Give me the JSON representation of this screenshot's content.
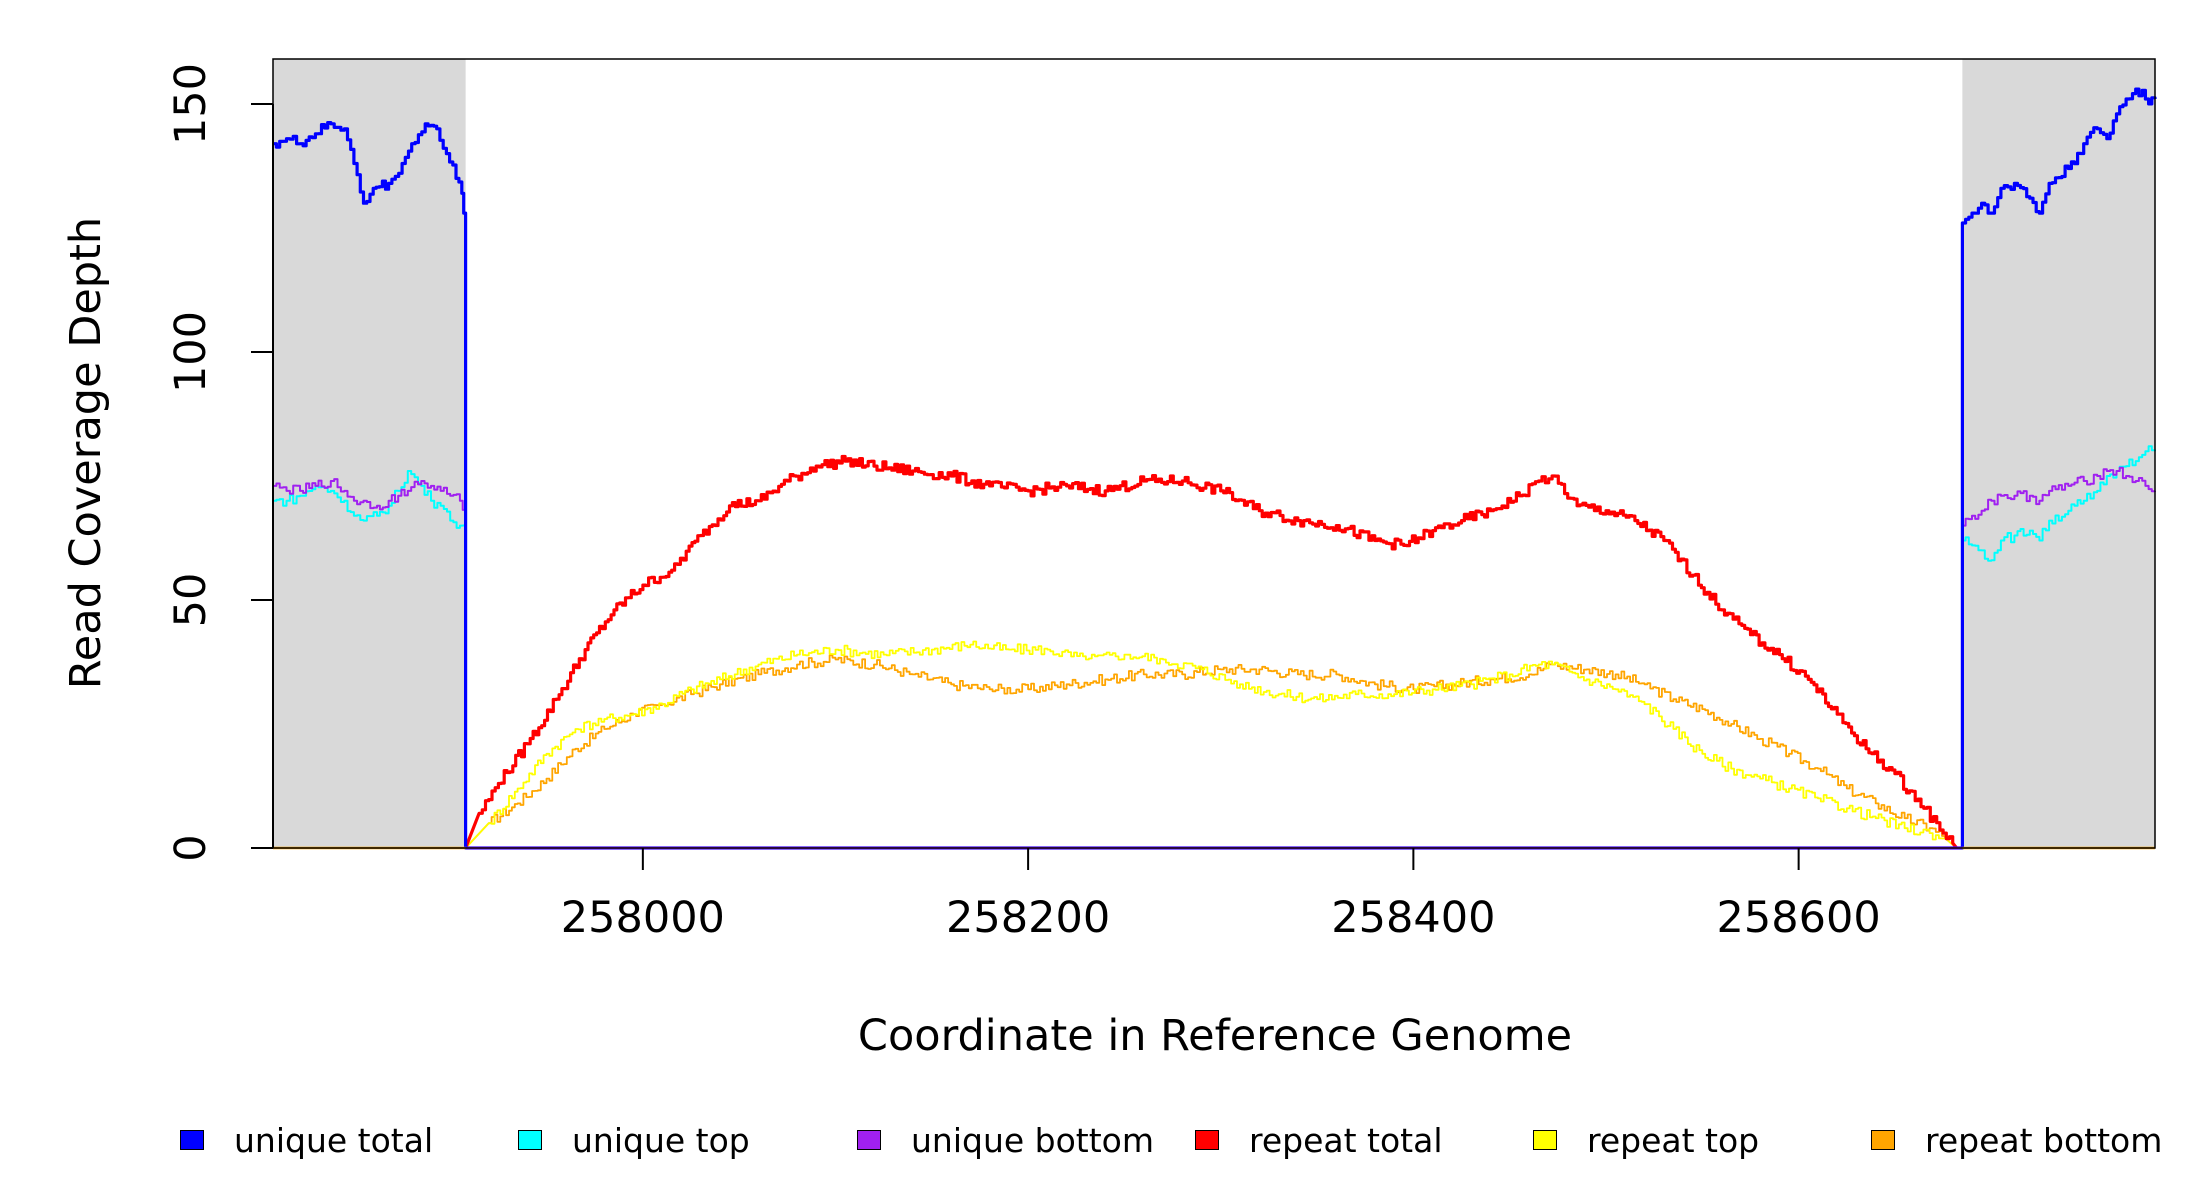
{
  "chart_data": {
    "type": "line",
    "xlabel": "Coordinate in Reference Genome",
    "ylabel": "Read Coverage Depth",
    "xlim": [
      257808,
      258785
    ],
    "ylim": [
      0,
      160
    ],
    "x_ticks": [
      258000,
      258200,
      258400,
      258600
    ],
    "x_tick_labels": [
      "258000",
      "258200",
      "258400",
      "258600"
    ],
    "y_ticks": [
      0,
      50,
      100,
      150
    ],
    "y_tick_labels": [
      "0",
      "50",
      "100",
      "150"
    ],
    "shaded_regions": [
      {
        "x": [
          257808,
          257908
        ],
        "color": "#d9d9d9",
        "label": "left unique flank"
      },
      {
        "x": [
          258685,
          258785
        ],
        "color": "#d9d9d9",
        "label": "right unique flank"
      }
    ],
    "legend_placement": "bottom",
    "series": [
      {
        "name": "unique total",
        "color": "#0000ff",
        "points": [
          [
            257808,
            142
          ],
          [
            257815,
            143
          ],
          [
            257822,
            142
          ],
          [
            257830,
            144
          ],
          [
            257838,
            146
          ],
          [
            257845,
            145
          ],
          [
            257850,
            138
          ],
          [
            257855,
            130
          ],
          [
            257860,
            133
          ],
          [
            257868,
            134
          ],
          [
            257875,
            138
          ],
          [
            257880,
            142
          ],
          [
            257887,
            146
          ],
          [
            257893,
            145
          ],
          [
            257898,
            140
          ],
          [
            257903,
            135
          ],
          [
            257906,
            132
          ],
          [
            257908,
            126
          ],
          [
            257908,
            0
          ],
          [
            258685,
            0
          ],
          [
            258685,
            126
          ],
          [
            258690,
            128
          ],
          [
            258695,
            130
          ],
          [
            258700,
            128
          ],
          [
            258705,
            133
          ],
          [
            258712,
            134
          ],
          [
            258720,
            131
          ],
          [
            258725,
            128
          ],
          [
            258730,
            134
          ],
          [
            258740,
            137
          ],
          [
            258748,
            142
          ],
          [
            258755,
            145
          ],
          [
            258760,
            143
          ],
          [
            258765,
            148
          ],
          [
            258770,
            151
          ],
          [
            258775,
            153
          ],
          [
            258780,
            151
          ],
          [
            258785,
            151
          ]
        ]
      },
      {
        "name": "unique top",
        "color": "#00ffff",
        "points": [
          [
            257808,
            70
          ],
          [
            257815,
            70
          ],
          [
            257822,
            71
          ],
          [
            257830,
            73
          ],
          [
            257838,
            72
          ],
          [
            257845,
            70
          ],
          [
            257850,
            67
          ],
          [
            257855,
            66
          ],
          [
            257862,
            67
          ],
          [
            257868,
            69
          ],
          [
            257873,
            72
          ],
          [
            257878,
            76
          ],
          [
            257885,
            73
          ],
          [
            257890,
            70
          ],
          [
            257895,
            69
          ],
          [
            257900,
            66
          ],
          [
            257905,
            65
          ],
          [
            257908,
            63
          ],
          [
            257908,
            0
          ],
          [
            258685,
            0
          ],
          [
            258685,
            62
          ],
          [
            258690,
            61
          ],
          [
            258695,
            60
          ],
          [
            258700,
            58
          ],
          [
            258705,
            62
          ],
          [
            258712,
            63
          ],
          [
            258720,
            64
          ],
          [
            258725,
            62
          ],
          [
            258730,
            66
          ],
          [
            258740,
            68
          ],
          [
            258748,
            70
          ],
          [
            258755,
            72
          ],
          [
            258760,
            75
          ],
          [
            258765,
            76
          ],
          [
            258770,
            77
          ],
          [
            258775,
            78
          ],
          [
            258780,
            80
          ],
          [
            258785,
            80
          ]
        ]
      },
      {
        "name": "unique bottom",
        "color": "#a020f0",
        "points": [
          [
            257808,
            73
          ],
          [
            257815,
            72
          ],
          [
            257822,
            72
          ],
          [
            257830,
            73
          ],
          [
            257838,
            74
          ],
          [
            257845,
            72
          ],
          [
            257850,
            70
          ],
          [
            257855,
            70
          ],
          [
            257862,
            69
          ],
          [
            257868,
            70
          ],
          [
            257873,
            71
          ],
          [
            257878,
            72
          ],
          [
            257885,
            74
          ],
          [
            257890,
            73
          ],
          [
            257895,
            72
          ],
          [
            257900,
            71
          ],
          [
            257905,
            70
          ],
          [
            257908,
            68
          ],
          [
            257908,
            0
          ],
          [
            258685,
            0
          ],
          [
            258685,
            65
          ],
          [
            258690,
            67
          ],
          [
            258695,
            68
          ],
          [
            258700,
            70
          ],
          [
            258705,
            71
          ],
          [
            258712,
            71
          ],
          [
            258720,
            71
          ],
          [
            258725,
            70
          ],
          [
            258730,
            72
          ],
          [
            258740,
            73
          ],
          [
            258748,
            74
          ],
          [
            258755,
            75
          ],
          [
            258760,
            76
          ],
          [
            258765,
            76
          ],
          [
            258770,
            75
          ],
          [
            258775,
            74
          ],
          [
            258780,
            73
          ],
          [
            258785,
            72
          ]
        ]
      },
      {
        "name": "repeat total",
        "color": "#ff0000",
        "points": [
          [
            257908,
            0
          ],
          [
            257915,
            7
          ],
          [
            257925,
            13
          ],
          [
            257940,
            21
          ],
          [
            257955,
            30
          ],
          [
            257970,
            40
          ],
          [
            257985,
            48
          ],
          [
            258000,
            53
          ],
          [
            258015,
            56
          ],
          [
            258030,
            63
          ],
          [
            258045,
            69
          ],
          [
            258060,
            70
          ],
          [
            258075,
            74
          ],
          [
            258090,
            77
          ],
          [
            258105,
            78
          ],
          [
            258120,
            77
          ],
          [
            258140,
            76
          ],
          [
            258160,
            75
          ],
          [
            258180,
            73
          ],
          [
            258200,
            72
          ],
          [
            258220,
            73
          ],
          [
            258240,
            72
          ],
          [
            258260,
            74
          ],
          [
            258280,
            74
          ],
          [
            258300,
            72
          ],
          [
            258320,
            68
          ],
          [
            258340,
            66
          ],
          [
            258360,
            65
          ],
          [
            258380,
            62
          ],
          [
            258395,
            61
          ],
          [
            258410,
            64
          ],
          [
            258425,
            66
          ],
          [
            258440,
            68
          ],
          [
            258455,
            71
          ],
          [
            258465,
            74
          ],
          [
            258472,
            75
          ],
          [
            258485,
            69
          ],
          [
            258500,
            68
          ],
          [
            258515,
            66
          ],
          [
            258530,
            62
          ],
          [
            258545,
            55
          ],
          [
            258560,
            48
          ],
          [
            258575,
            43
          ],
          [
            258590,
            39
          ],
          [
            258605,
            34
          ],
          [
            258620,
            27
          ],
          [
            258635,
            20
          ],
          [
            258650,
            15
          ],
          [
            258665,
            8
          ],
          [
            258675,
            3
          ],
          [
            258680,
            1
          ],
          [
            258682,
            0
          ]
        ]
      },
      {
        "name": "repeat top",
        "color": "#ffff00",
        "points": [
          [
            257908,
            0
          ],
          [
            257920,
            5
          ],
          [
            257935,
            12
          ],
          [
            257950,
            19
          ],
          [
            257965,
            24
          ],
          [
            257980,
            26
          ],
          [
            257995,
            27
          ],
          [
            258010,
            29
          ],
          [
            258025,
            32
          ],
          [
            258040,
            34
          ],
          [
            258060,
            37
          ],
          [
            258080,
            39
          ],
          [
            258100,
            40
          ],
          [
            258125,
            39
          ],
          [
            258150,
            40
          ],
          [
            258170,
            41
          ],
          [
            258190,
            40
          ],
          [
            258210,
            40
          ],
          [
            258230,
            38
          ],
          [
            258250,
            39
          ],
          [
            258270,
            38
          ],
          [
            258290,
            36
          ],
          [
            258310,
            33
          ],
          [
            258330,
            31
          ],
          [
            258350,
            30
          ],
          [
            258370,
            31
          ],
          [
            258390,
            31
          ],
          [
            258410,
            32
          ],
          [
            258430,
            33
          ],
          [
            258450,
            35
          ],
          [
            258465,
            37
          ],
          [
            258472,
            37
          ],
          [
            258490,
            34
          ],
          [
            258505,
            32
          ],
          [
            258520,
            29
          ],
          [
            258535,
            24
          ],
          [
            258550,
            19
          ],
          [
            258565,
            16
          ],
          [
            258580,
            14
          ],
          [
            258595,
            12
          ],
          [
            258610,
            10
          ],
          [
            258625,
            8
          ],
          [
            258640,
            6
          ],
          [
            258655,
            4
          ],
          [
            258668,
            3
          ],
          [
            258676,
            2
          ],
          [
            258682,
            0
          ]
        ]
      },
      {
        "name": "repeat bottom",
        "color": "#ffa500",
        "points": [
          [
            257908,
            0
          ],
          [
            257920,
            5
          ],
          [
            257935,
            9
          ],
          [
            257950,
            14
          ],
          [
            257965,
            20
          ],
          [
            257980,
            24
          ],
          [
            257995,
            27
          ],
          [
            258010,
            29
          ],
          [
            258025,
            31
          ],
          [
            258040,
            33
          ],
          [
            258060,
            35
          ],
          [
            258080,
            37
          ],
          [
            258100,
            38
          ],
          [
            258120,
            37
          ],
          [
            258140,
            35
          ],
          [
            258160,
            33
          ],
          [
            258180,
            32
          ],
          [
            258200,
            32
          ],
          [
            258220,
            33
          ],
          [
            258240,
            34
          ],
          [
            258260,
            35
          ],
          [
            258280,
            35
          ],
          [
            258300,
            36
          ],
          [
            258320,
            36
          ],
          [
            258340,
            35
          ],
          [
            258360,
            35
          ],
          [
            258380,
            33
          ],
          [
            258400,
            32
          ],
          [
            258420,
            33
          ],
          [
            258440,
            34
          ],
          [
            258460,
            35
          ],
          [
            258472,
            37
          ],
          [
            258490,
            36
          ],
          [
            258505,
            35
          ],
          [
            258520,
            33
          ],
          [
            258535,
            30
          ],
          [
            258550,
            28
          ],
          [
            258565,
            25
          ],
          [
            258580,
            22
          ],
          [
            258595,
            19
          ],
          [
            258610,
            16
          ],
          [
            258625,
            12
          ],
          [
            258640,
            9
          ],
          [
            258655,
            6
          ],
          [
            258668,
            4
          ],
          [
            258676,
            2
          ],
          [
            258682,
            0
          ]
        ]
      }
    ]
  }
}
